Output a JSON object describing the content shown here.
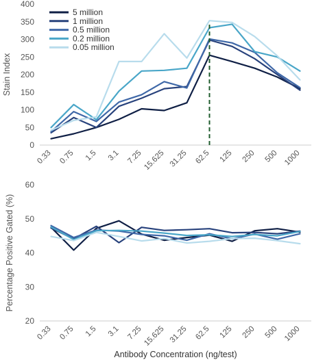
{
  "chart_data": [
    {
      "type": "line",
      "ylabel": "Stain Index",
      "xlabel": "",
      "ylim": [
        0,
        400
      ],
      "yticks": [
        0,
        50,
        100,
        150,
        200,
        250,
        300,
        350,
        400
      ],
      "categories": [
        "0.33",
        "0.75",
        "1.5",
        "3.1",
        "7.25",
        "15.625",
        "31.25",
        "62.5",
        "125",
        "250",
        "500",
        "1000"
      ],
      "legend_position": "top-left",
      "grid": false,
      "reference_line": {
        "x": "62.5",
        "style": "dashed",
        "color": "#1f5c2e"
      },
      "series": [
        {
          "name": "5 million",
          "color": "#0f1f45",
          "values": [
            18,
            32,
            50,
            73,
            103,
            98,
            120,
            255,
            237,
            218,
            193,
            160
          ]
        },
        {
          "name": "1 million",
          "color": "#28427c",
          "values": [
            35,
            78,
            50,
            110,
            133,
            160,
            166,
            298,
            280,
            245,
            200,
            156
          ]
        },
        {
          "name": "0.5 million",
          "color": "#3f68a8",
          "values": [
            38,
            95,
            67,
            122,
            143,
            180,
            162,
            301,
            290,
            263,
            205,
            163
          ]
        },
        {
          "name": "0.2 million",
          "color": "#49a6c8",
          "values": [
            50,
            115,
            72,
            153,
            210,
            212,
            218,
            333,
            343,
            265,
            250,
            210
          ]
        },
        {
          "name": "0.05 million",
          "color": "#b8dcec",
          "values": [
            42,
            70,
            80,
            237,
            237,
            316,
            247,
            353,
            348,
            308,
            253,
            185
          ]
        }
      ]
    },
    {
      "type": "line",
      "ylabel": "Percentage Positive Gated (%)",
      "xlabel": "Antibody Concentration (ng/test)",
      "ylim": [
        20,
        60
      ],
      "yticks": [
        20,
        30,
        40,
        50,
        60
      ],
      "categories": [
        "0.33",
        "0.75",
        "1.5",
        "3.1",
        "7.25",
        "15.625",
        "31.25",
        "62.5",
        "125",
        "250",
        "500",
        "1000"
      ],
      "grid": false,
      "series": [
        {
          "name": "5 million",
          "color": "#0f1f45",
          "values": [
            47.5,
            40.8,
            47.2,
            49.4,
            45.5,
            43.7,
            44.5,
            45.2,
            43.4,
            46.5,
            47.1,
            46.1
          ]
        },
        {
          "name": "1 million",
          "color": "#28427c",
          "values": [
            47.3,
            44.1,
            47.8,
            43.0,
            47.5,
            46.6,
            46.8,
            47.1,
            45.9,
            46.0,
            45.6,
            46.4
          ]
        },
        {
          "name": "0.5 million",
          "color": "#3f68a8",
          "values": [
            48.0,
            44.5,
            46.7,
            46.4,
            45.4,
            45.0,
            43.7,
            45.6,
            44.1,
            45.5,
            44.0,
            45.6
          ]
        },
        {
          "name": "0.2 million",
          "color": "#49a6c8",
          "values": [
            47.6,
            43.9,
            46.5,
            46.6,
            46.4,
            45.8,
            45.1,
            45.3,
            44.8,
            45.4,
            45.0,
            46.3
          ]
        },
        {
          "name": "0.05 million",
          "color": "#b8dcec",
          "values": [
            44.8,
            43.6,
            46.0,
            44.8,
            43.5,
            44.2,
            42.9,
            43.4,
            44.2,
            44.3,
            43.6,
            42.7
          ]
        }
      ]
    }
  ]
}
